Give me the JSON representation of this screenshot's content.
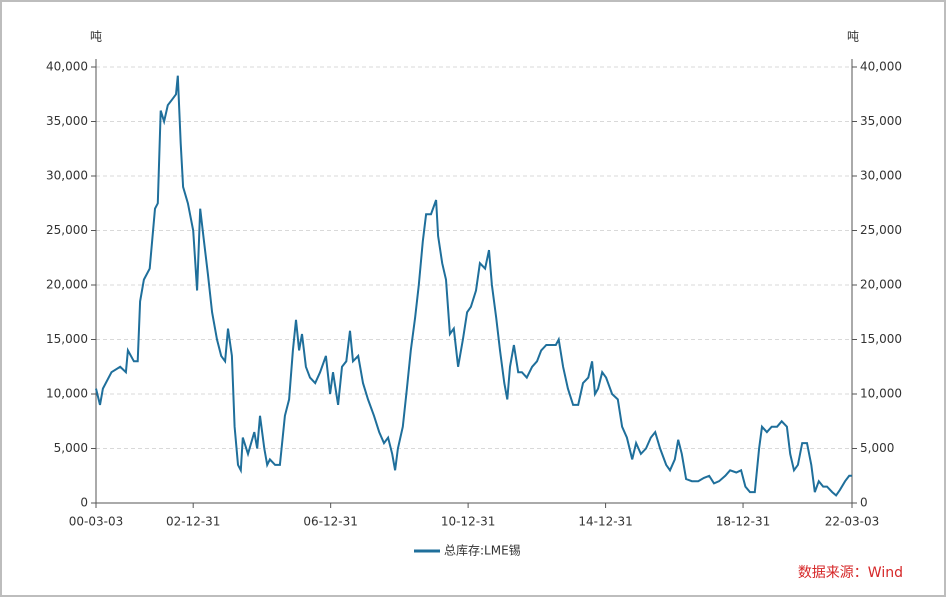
{
  "chart_data": {
    "type": "line",
    "y_unit": "吨",
    "y2_unit": "吨",
    "source": "数据来源：Wind",
    "x": [
      "00-03-03",
      "00-04-15",
      "00-05-15",
      "00-08-15",
      "00-11-15",
      "01-01-15",
      "01-02-05",
      "01-04-10",
      "01-05-20",
      "01-06-15",
      "01-07-25",
      "01-09-25",
      "01-11-20",
      "01-12-20",
      "02-01-20",
      "02-02-25",
      "02-04-05",
      "02-05-20",
      "02-07-01",
      "02-07-20",
      "02-08-20",
      "02-09-15",
      "02-11-05",
      "02-12-31",
      "03-02-10",
      "03-03-15",
      "03-04-25",
      "03-06-05",
      "03-07-20",
      "03-09-10",
      "03-10-25",
      "03-12-05",
      "04-01-05",
      "04-02-15",
      "04-03-15",
      "04-04-20",
      "04-05-20",
      "04-06-10",
      "04-08-05",
      "04-10-10",
      "04-11-10",
      "04-12-10",
      "05-01-25",
      "05-02-25",
      "05-03-25",
      "05-05-20",
      "05-07-10",
      "05-09-01",
      "05-10-15",
      "05-11-25",
      "05-12-28",
      "06-01-30",
      "06-03-01",
      "06-04-12",
      "06-05-25",
      "06-07-20",
      "06-09-10",
      "06-11-10",
      "06-12-25",
      "07-01-25",
      "07-03-20",
      "07-05-01",
      "07-06-15",
      "07-07-25",
      "07-08-25",
      "07-10-20",
      "07-12-10",
      "08-02-01",
      "08-04-05",
      "08-05-30",
      "08-07-20",
      "08-09-01",
      "08-10-15",
      "08-11-15",
      "08-12-15",
      "09-02-05",
      "09-03-20",
      "09-05-01",
      "09-06-15",
      "09-07-25",
      "09-09-05",
      "09-10-10",
      "09-12-01",
      "10-01-25",
      "10-02-15",
      "10-03-30",
      "10-05-10",
      "10-06-20",
      "10-08-01",
      "10-09-15",
      "10-11-05",
      "10-12-20",
      "11-01-30",
      "11-03-25",
      "11-05-05",
      "11-06-30",
      "11-08-10",
      "11-09-10",
      "11-10-25",
      "11-12-05",
      "12-01-20",
      "12-02-20",
      "12-03-20",
      "12-05-01",
      "12-06-15",
      "12-07-25",
      "12-09-15",
      "12-11-10",
      "13-01-01",
      "13-02-15",
      "13-04-10",
      "13-05-30",
      "13-07-20",
      "13-08-20",
      "13-10-05",
      "13-11-25",
      "14-01-20",
      "14-03-15",
      "14-05-05",
      "14-06-30",
      "14-08-10",
      "14-09-10",
      "14-10-12",
      "14-11-25",
      "15-01-05",
      "15-03-10",
      "15-05-10",
      "15-06-25",
      "15-08-15",
      "15-10-10",
      "15-11-20",
      "16-01-10",
      "16-03-05",
      "16-04-25",
      "16-06-10",
      "16-08-01",
      "16-10-05",
      "16-11-15",
      "17-01-05",
      "17-02-10",
      "17-03-20",
      "17-05-05",
      "17-07-05",
      "17-09-10",
      "17-11-10",
      "18-01-05",
      "18-02-25",
      "18-04-20",
      "18-06-25",
      "18-08-15",
      "18-10-20",
      "18-12-10",
      "19-01-25",
      "19-03-15",
      "19-05-05",
      "19-06-20",
      "19-07-20",
      "19-09-10",
      "19-11-01",
      "19-12-28",
      "20-02-15",
      "20-04-10",
      "20-05-15",
      "20-06-25",
      "20-08-05",
      "20-09-20",
      "20-11-10",
      "20-12-25",
      "21-02-01",
      "21-03-15",
      "21-05-01",
      "21-06-10",
      "21-08-05",
      "21-09-15",
      "21-10-25",
      "21-12-20",
      "22-02-01",
      "22-03-03"
    ],
    "series": [
      {
        "name": "总库存:LME锡",
        "color": "#1f6f9b",
        "values": [
          10500,
          9000,
          10500,
          12000,
          12500,
          12000,
          14000,
          13000,
          13000,
          18500,
          20500,
          21500,
          27000,
          27500,
          36000,
          35000,
          36500,
          37000,
          37500,
          39200,
          33000,
          29000,
          27500,
          25000,
          19500,
          27000,
          24000,
          21000,
          17500,
          15000,
          13500,
          13000,
          16000,
          13500,
          7000,
          3500,
          3000,
          6000,
          4500,
          6500,
          5000,
          8000,
          5000,
          3500,
          4000,
          3500,
          3500,
          8000,
          9500,
          14000,
          16800,
          14000,
          15500,
          12500,
          11500,
          11000,
          12000,
          13500,
          10000,
          12000,
          9000,
          12500,
          13000,
          15800,
          13000,
          13500,
          11000,
          9500,
          8000,
          6500,
          5500,
          6000,
          4500,
          3000,
          5000,
          7000,
          10500,
          14000,
          17000,
          20000,
          24000,
          26500,
          26500,
          27800,
          24500,
          22000,
          20500,
          15500,
          16000,
          12500,
          15000,
          17500,
          18000,
          19500,
          22000,
          21500,
          23200,
          20000,
          17000,
          14000,
          11000,
          9500,
          12500,
          14500,
          12000,
          12000,
          11500,
          12500,
          13000,
          14000,
          14500,
          14500,
          14500,
          15000,
          12500,
          10500,
          9000,
          9000,
          11000,
          11500,
          13000,
          10000,
          10500,
          12000,
          11500,
          10000,
          9500,
          7000,
          6000,
          4000,
          5500,
          4500,
          5000,
          6000,
          6500,
          5000,
          3500,
          3000,
          4000,
          5800,
          4500,
          2200,
          2000,
          2000,
          2300,
          2500,
          1800,
          2000,
          2500,
          3000,
          2800,
          3000,
          1500,
          1000,
          1000,
          5000,
          7000,
          6500,
          7000,
          7000,
          7500,
          7000,
          4500,
          3000,
          3500,
          5500,
          5500,
          3500,
          1000,
          2000,
          1500,
          1500,
          1000,
          700,
          1200,
          2000,
          2500,
          2500
        ]
      }
    ],
    "xlim": [
      "00-03-03",
      "22-03-03"
    ],
    "xticks": [
      "00-03-03",
      "02-12-31",
      "06-12-31",
      "10-12-31",
      "14-12-31",
      "18-12-31",
      "22-03-03"
    ],
    "ylim": [
      0,
      40000
    ],
    "yticks": [
      0,
      {
        "value": 5000,
        "label": "5,000"
      },
      {
        "value": 10000,
        "label": "10,000"
      },
      {
        "value": 15000,
        "label": "15,000"
      },
      {
        "value": 20000,
        "label": "20,000"
      },
      {
        "value": 25000,
        "label": "25,000"
      },
      {
        "value": 30000,
        "label": "30,000"
      },
      {
        "value": 35000,
        "label": "35,000"
      },
      {
        "value": 40000,
        "label": "40,000"
      }
    ],
    "y2lim": [
      0,
      40000
    ],
    "y2ticks": [
      0,
      {
        "value": 5000,
        "label": "5,000"
      },
      {
        "value": 10000,
        "label": "10,000"
      },
      {
        "value": 15000,
        "label": "15,000"
      },
      {
        "value": 20000,
        "label": "20,000"
      },
      {
        "value": 25000,
        "label": "25,000"
      },
      {
        "value": 30000,
        "label": "30,000"
      },
      {
        "value": 35000,
        "label": "35,000"
      },
      {
        "value": 40000,
        "label": "40,000"
      }
    ],
    "grid": true,
    "legend": "bottom"
  }
}
